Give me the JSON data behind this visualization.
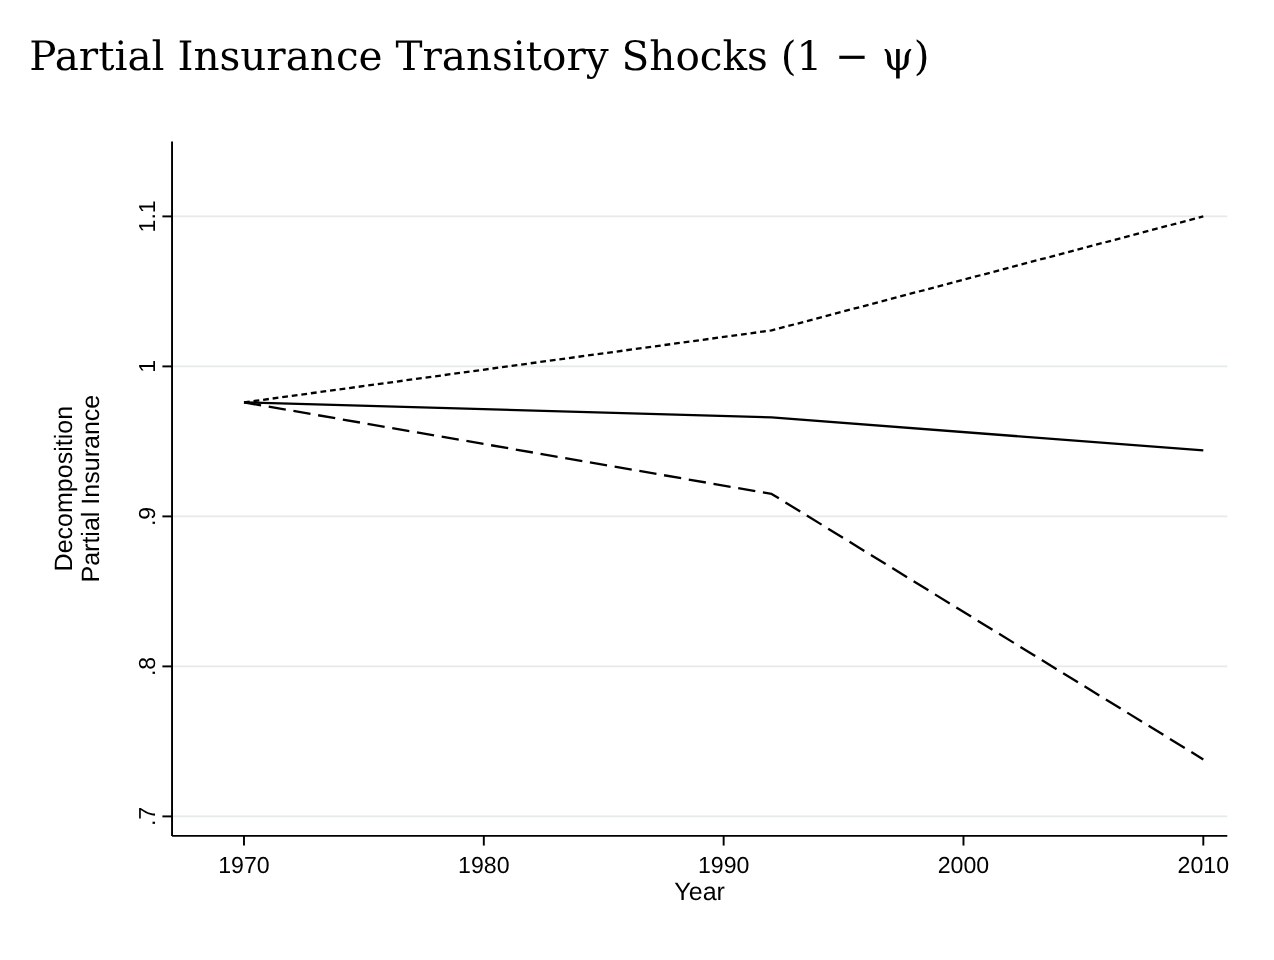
{
  "chart_data": {
    "type": "line",
    "title": "Partial Insurance Transitory Shocks (1 − ψ)",
    "xlabel": "Year",
    "ylabel": "Decomposition\nPartial Insurance",
    "x": [
      1970,
      1992,
      2010
    ],
    "series": [
      {
        "color": "#000000",
        "line_style": "solid",
        "values": [
          0.976,
          0.966,
          0.944
        ]
      },
      {
        "color": "#000000",
        "line_style": "dotted",
        "values": [
          0.976,
          1.024,
          1.1
        ]
      },
      {
        "color": "#000000",
        "line_style": "dashed",
        "values": [
          0.976,
          0.915,
          0.738
        ]
      }
    ],
    "xlim": [
      1967,
      2011
    ],
    "xticks": [
      1970,
      1980,
      1990,
      2000,
      2010
    ],
    "ylim": [
      0.687,
      1.15
    ],
    "yticks": [
      {
        "value": 0.7,
        "label": ".7"
      },
      {
        "value": 0.8,
        "label": ".8"
      },
      {
        "value": 0.9,
        "label": ".9"
      },
      1,
      1.1
    ],
    "grid": "y"
  }
}
